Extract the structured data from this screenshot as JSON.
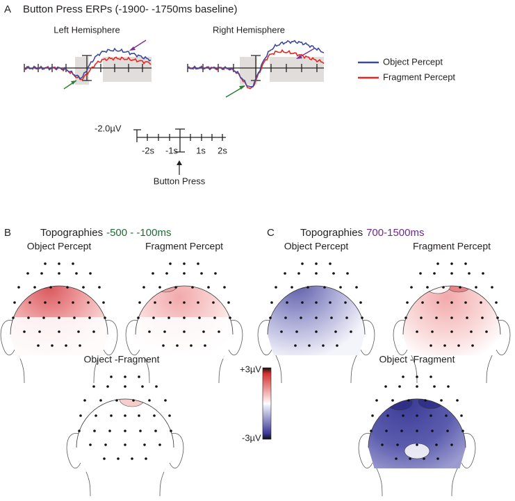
{
  "panel_a": {
    "label": "A",
    "title": "Button Press ERPs (-1900- -1750ms baseline)",
    "left_title": "Left Hemisphere",
    "right_title": "Right Hemisphere",
    "legend": [
      {
        "name": "Object Percept",
        "color": "#3c4a9c"
      },
      {
        "name": "Fragment Percept",
        "color": "#e8261f"
      }
    ],
    "scale": {
      "amplitude": "-2.0µV",
      "ticks": [
        "-2s",
        "-1s",
        "1s",
        "2s"
      ],
      "event": "Button Press"
    }
  },
  "panel_b": {
    "label": "B",
    "title": "Topographies",
    "window": "-500 - -100ms",
    "window_color": "#1e6b35",
    "maps": [
      "Object Percept",
      "Fragment Percept",
      "Object -Fragment"
    ]
  },
  "panel_c": {
    "label": "C",
    "title": "Topographies",
    "window": "700-1500ms",
    "window_color": "#6b2a8c",
    "maps": [
      "Object Percept",
      "Fragment Percept",
      "Object -Fragment"
    ]
  },
  "colorbar": {
    "max": "+3µV",
    "min": "-3µV"
  }
}
